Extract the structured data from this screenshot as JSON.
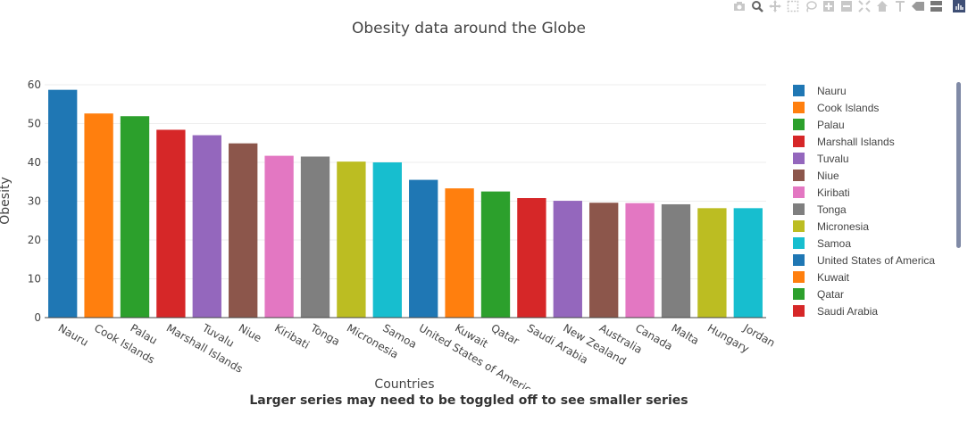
{
  "modebar": {
    "icons": [
      "camera-icon",
      "zoom-icon",
      "pan-icon",
      "box-select-icon",
      "lasso-icon",
      "zoom-in-icon",
      "zoom-out-icon",
      "autoscale-icon",
      "home-icon",
      "spike-lines-icon",
      "hover-closest-icon",
      "hover-compare-icon",
      "plotly-logo-icon"
    ]
  },
  "chart_data": {
    "type": "bar",
    "title": "Obesity data around the Globe",
    "xlabel": "Countries",
    "ylabel": "Obesity",
    "ylim": [
      0,
      60
    ],
    "yticks": [
      0,
      10,
      20,
      30,
      40,
      50,
      60
    ],
    "grid": true,
    "legend_position": "right",
    "series": [
      {
        "name": "Nauru",
        "x": "Nauru",
        "value": 58.7,
        "color": "#1f77b4"
      },
      {
        "name": "Cook Islands",
        "x": "Cook Islands",
        "value": 52.6,
        "color": "#ff7f0e"
      },
      {
        "name": "Palau",
        "x": "Palau",
        "value": 51.9,
        "color": "#2ca02c"
      },
      {
        "name": "Marshall Islands",
        "x": "Marshall Islands",
        "value": 48.4,
        "color": "#d62728"
      },
      {
        "name": "Tuvalu",
        "x": "Tuvalu",
        "value": 47.0,
        "color": "#9467bd"
      },
      {
        "name": "Niue",
        "x": "Niue",
        "value": 44.9,
        "color": "#8c564b"
      },
      {
        "name": "Kiribati",
        "x": "Kiribati",
        "value": 41.7,
        "color": "#e377c2"
      },
      {
        "name": "Tonga",
        "x": "Tonga",
        "value": 41.5,
        "color": "#7f7f7f"
      },
      {
        "name": "Micronesia",
        "x": "Micronesia",
        "value": 40.2,
        "color": "#bcbd22"
      },
      {
        "name": "Samoa",
        "x": "Samoa",
        "value": 40.0,
        "color": "#17becf"
      },
      {
        "name": "United States of America",
        "x": "United States of America",
        "value": 35.5,
        "color": "#1f77b4"
      },
      {
        "name": "Kuwait",
        "x": "Kuwait",
        "value": 33.3,
        "color": "#ff7f0e"
      },
      {
        "name": "Qatar",
        "x": "Qatar",
        "value": 32.5,
        "color": "#2ca02c"
      },
      {
        "name": "Saudi Arabia",
        "x": "Saudi Arabia",
        "value": 30.8,
        "color": "#d62728"
      },
      {
        "name": "New Zealand",
        "x": "New Zealand",
        "value": 30.1,
        "color": "#9467bd"
      },
      {
        "name": "Australia",
        "x": "Australia",
        "value": 29.6,
        "color": "#8c564b"
      },
      {
        "name": "Canada",
        "x": "Canada",
        "value": 29.5,
        "color": "#e377c2"
      },
      {
        "name": "Malta",
        "x": "Malta",
        "value": 29.2,
        "color": "#7f7f7f"
      },
      {
        "name": "Hungary",
        "x": "Hungary",
        "value": 28.2,
        "color": "#bcbd22"
      },
      {
        "name": "Jordan",
        "x": "Jordan",
        "value": 28.2,
        "color": "#17becf"
      }
    ],
    "legend_visible_count": 14
  },
  "footnote": "Larger series may need to be toggled off to see smaller series"
}
